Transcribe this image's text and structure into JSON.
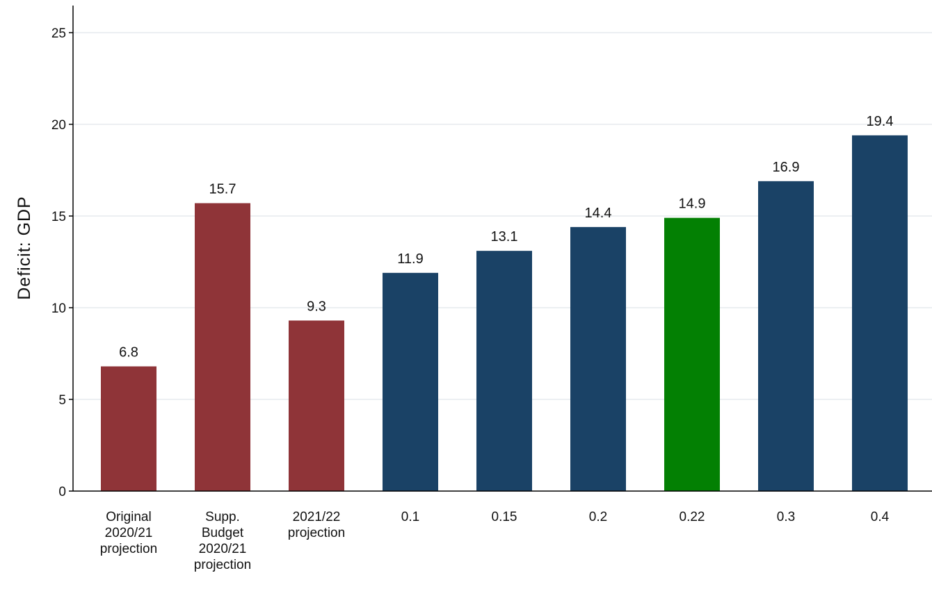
{
  "chart_data": {
    "type": "bar",
    "title": "",
    "xlabel": "",
    "ylabel": "Deficit: GDP",
    "ylim": [
      0,
      25
    ],
    "yticks": [
      0,
      5,
      10,
      15,
      20,
      25
    ],
    "grid": true,
    "categories": [
      "Original 2020/21 projection",
      "Supp. Budget 2020/21 projection",
      "2021/22 projection",
      "0.1",
      "0.15",
      "0.2",
      "0.22",
      "0.3",
      "0.4"
    ],
    "category_lines": [
      [
        "Original",
        "2020/21",
        "projection"
      ],
      [
        "Supp.",
        "Budget",
        "2020/21",
        "projection"
      ],
      [
        "2021/22",
        "projection"
      ],
      [
        "0.1"
      ],
      [
        "0.15"
      ],
      [
        "0.2"
      ],
      [
        "0.22"
      ],
      [
        "0.3"
      ],
      [
        "0.4"
      ]
    ],
    "values": [
      6.8,
      15.7,
      9.3,
      11.9,
      13.1,
      14.4,
      14.9,
      16.9,
      19.4
    ],
    "value_labels": [
      "6.8",
      "15.7",
      "9.3",
      "11.9",
      "13.1",
      "14.4",
      "14.9",
      "16.9",
      "19.4"
    ],
    "bar_colors": [
      "#8f3438",
      "#8f3438",
      "#8f3438",
      "#1a4266",
      "#1a4266",
      "#1a4266",
      "#038003",
      "#1a4266",
      "#1a4266"
    ]
  }
}
